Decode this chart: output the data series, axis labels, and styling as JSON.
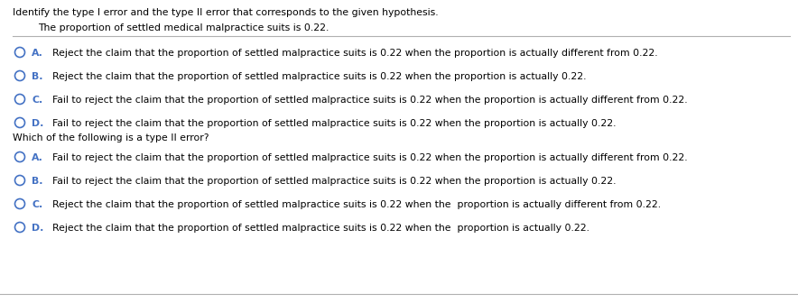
{
  "bg_color": "#ffffff",
  "title_line": "Identify the type I error and the type II error that corresponds to the given hypothesis.",
  "hypothesis": "The proportion of settled medical malpractice suits is 0.22.",
  "section2_question": "Which of the following is a type II error?",
  "section1_options": [
    {
      "label": "A.",
      "text": "Reject the claim that the proportion of settled malpractice suits is 0.22 when the proportion is actually different from 0.22."
    },
    {
      "label": "B.",
      "text": "Reject the claim that the proportion of settled malpractice suits is 0.22 when the proportion is actually 0.22."
    },
    {
      "label": "C.",
      "text": "Fail to reject the claim that the proportion of settled malpractice suits is 0.22 when the proportion is actually different from 0.22."
    },
    {
      "label": "D.",
      "text": "Fail to reject the claim that the proportion of settled malpractice suits is 0.22 when the proportion is actually 0.22."
    }
  ],
  "section2_options": [
    {
      "label": "A.",
      "text": "Fail to reject the claim that the proportion of settled malpractice suits is 0.22 when the proportion is actually different from 0.22."
    },
    {
      "label": "B.",
      "text": "Fail to reject the claim that the proportion of settled malpractice suits is 0.22 when the proportion is actually 0.22."
    },
    {
      "label": "C.",
      "text": "Reject the claim that the proportion of settled malpractice suits is 0.22 when the  proportion is actually different from 0.22."
    },
    {
      "label": "D.",
      "text": "Reject the claim that the proportion of settled malpractice suits is 0.22 when the  proportion is actually 0.22."
    }
  ],
  "circle_color": "#4472c4",
  "label_color": "#4472c4",
  "text_color": "#000000",
  "line_color": "#b0b0b0",
  "font_size": 7.8,
  "title_font_size": 7.8,
  "hyp_font_size": 7.8
}
